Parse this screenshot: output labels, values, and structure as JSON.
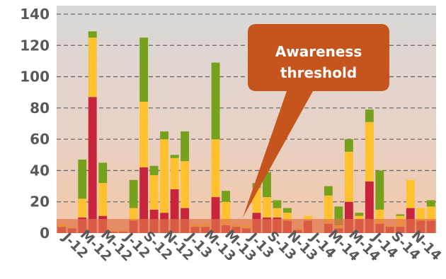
{
  "chart_data": {
    "type": "bar",
    "stacked": true,
    "ylim": [
      0,
      140
    ],
    "yticks": [
      0,
      20,
      40,
      60,
      80,
      100,
      120,
      140
    ],
    "grid": "horizontal-dashed",
    "colors": {
      "red": "#c8243c",
      "yellow": "#ffc12e",
      "green": "#76a11d",
      "band": "#e0744a",
      "bg_top": "#d8d8d8",
      "bg_bottom": "#f2c6a6"
    },
    "annotation_band": {
      "from": 0,
      "to": 9
    },
    "categories": [
      "",
      "",
      "",
      "",
      "",
      "",
      "",
      "",
      "",
      "",
      "",
      "",
      "",
      "",
      "",
      "",
      "",
      "",
      "",
      "",
      "",
      "",
      "",
      "",
      "",
      "",
      "",
      "",
      "",
      "",
      "",
      "",
      "",
      "",
      "",
      "",
      ""
    ],
    "tick_labels": [
      "J-12",
      "M-12",
      "M-12",
      "J-12",
      "S-12",
      "N-12",
      "J-13",
      "M-13",
      "M-13",
      "J-13",
      "S-13",
      "N-13",
      "J-14",
      "M-14",
      "M-14",
      "J-14",
      "S-14",
      "N-14"
    ],
    "series": [
      {
        "values": [
          4,
          3,
          10,
          87,
          11,
          1,
          1,
          8,
          42,
          15,
          13,
          28,
          16,
          4,
          4,
          23,
          5,
          4,
          3,
          13,
          10,
          10,
          8,
          2,
          8,
          0,
          6,
          3,
          20,
          9,
          33,
          6,
          4,
          4,
          16,
          8,
          8
        ]
      },
      {
        "values": [
          2,
          1,
          12,
          38,
          21,
          1,
          1,
          8,
          42,
          22,
          47,
          20,
          30,
          2,
          2,
          37,
          15,
          2,
          2,
          16,
          13,
          6,
          5,
          1,
          3,
          0,
          18,
          2,
          32,
          2,
          38,
          9,
          1,
          7,
          18,
          8,
          9
        ]
      },
      {
        "values": [
          0,
          0,
          25,
          4,
          13,
          0,
          0,
          18,
          41,
          6,
          5,
          2,
          19,
          0,
          0,
          49,
          7,
          0,
          0,
          3,
          16,
          5,
          3,
          0,
          0,
          0,
          6,
          12,
          8,
          2,
          8,
          25,
          0,
          1,
          0,
          0,
          4
        ]
      }
    ],
    "callout": "Awareness threshold"
  }
}
